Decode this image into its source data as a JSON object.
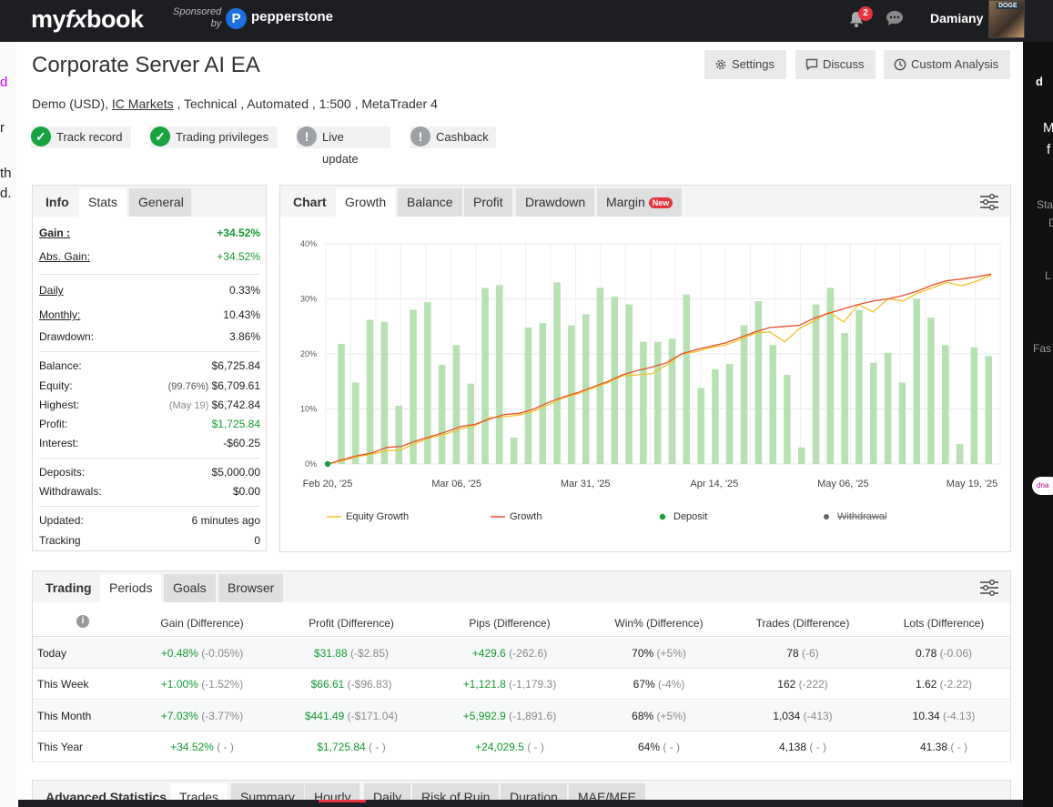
{
  "topbar": {
    "logo_my": "my",
    "logo_fx": "fx",
    "logo_book": "book",
    "sponsored_line1": "Sponsored",
    "sponsored_line2": "by",
    "sponsor_name": "pepperstone",
    "notification_count": "2",
    "username": "Damiany",
    "avatar_caption": "DOGE"
  },
  "left_fragments": [
    "d",
    "r",
    "th",
    "d."
  ],
  "right_fragments": [
    "d",
    "M",
    "f",
    "Sta",
    "D",
    "L",
    "Fas",
    "dna"
  ],
  "header": {
    "title": "Corporate Server AI EA",
    "settings_label": "Settings",
    "discuss_label": "Discuss",
    "custom_analysis_label": "Custom Analysis",
    "subtitle_pre": "Demo (USD), ",
    "subtitle_link": "IC Markets",
    "subtitle_post": " , Technical , Automated , 1:500 , MetaTrader 4",
    "chips": [
      "Track record",
      "Trading privileges",
      "Live update",
      "Cashback"
    ]
  },
  "stats_panel": {
    "tabs": [
      "Info",
      "Stats",
      "General"
    ],
    "gain_label": "Gain :",
    "gain_value": "+34.52%",
    "abs_gain_label": "Abs. Gain:",
    "abs_gain_value": "+34.52%",
    "daily_label": "Daily",
    "daily_value": "0.33%",
    "monthly_label": "Monthly:",
    "monthly_value": "10.43%",
    "drawdown_label": "Drawdown:",
    "drawdown_value": "3.86%",
    "balance_label": "Balance:",
    "balance_value": "$6,725.84",
    "equity_label": "Equity:",
    "equity_pct": "(99.76%)",
    "equity_value": "$6,709.61",
    "highest_label": "Highest:",
    "highest_date": "(May 19)",
    "highest_value": "$6,742.84",
    "profit_label": "Profit:",
    "profit_value": "$1,725.84",
    "interest_label": "Interest:",
    "interest_value": "-$60.25",
    "deposits_label": "Deposits:",
    "deposits_value": "$5,000.00",
    "withdrawals_label": "Withdrawals:",
    "withdrawals_value": "$0.00",
    "updated_label": "Updated:",
    "updated_value": "6 minutes ago",
    "tracking_label": "Tracking",
    "tracking_value": "0"
  },
  "chart_panel": {
    "tabs": [
      "Chart",
      "Growth",
      "Balance",
      "Profit",
      "Drawdown",
      "Margin"
    ],
    "new_badge": "New"
  },
  "chart_data": {
    "type": "bar",
    "y_ticks": [
      "40%",
      "30%",
      "20%",
      "10%",
      "0%"
    ],
    "ylim": [
      0,
      40
    ],
    "x_ticks": [
      "Feb 20, '25",
      "Mar 06, '25",
      "Mar 31, '25",
      "Apr 14, '25",
      "May 06, '25",
      "May 19, '25"
    ],
    "legend": [
      "Equity Growth",
      "Growth",
      "Deposit",
      "Withdrawal"
    ],
    "legend_placement": "bottom",
    "grid": true,
    "colors": {
      "bars": "#b7e1b3",
      "growth": "#e8502a",
      "equity": "#f2c22a",
      "deposit": "#17a33d",
      "withdrawal": "#666666"
    },
    "bar_values": [
      21.8,
      14.8,
      26.2,
      25.8,
      10.6,
      28,
      29.4,
      18,
      21.6,
      14.6,
      32,
      32.5,
      4.8,
      24.8,
      25.6,
      33,
      25.2,
      27.2,
      32,
      30.4,
      29,
      22.2,
      22.2,
      22.8,
      30.8,
      13.8,
      17.2,
      18.2,
      25.2,
      29.6,
      21.6,
      16.2,
      3,
      29,
      32,
      23.8,
      28,
      18.4,
      20.2,
      14.8,
      30,
      26.6,
      21.6,
      3.6,
      21.2,
      19.6
    ],
    "growth_values": [
      0,
      0.8,
      1.5,
      2.0,
      3.0,
      3.2,
      4.2,
      5.0,
      5.8,
      6.8,
      7.2,
      8.2,
      9.0,
      9.2,
      10.0,
      11.2,
      12.2,
      13.0,
      14.0,
      15.0,
      16.2,
      17.0,
      17.6,
      18.4,
      20.0,
      20.8,
      21.4,
      22.0,
      23.0,
      24.0,
      24.8,
      25.0,
      25.2,
      26.5,
      27.4,
      28.2,
      29.0,
      29.6,
      30.0,
      30.6,
      31.4,
      32.5,
      33.3,
      33.6,
      34.0,
      34.5
    ],
    "equity_values": [
      0,
      0.6,
      1.3,
      1.8,
      2.4,
      2.6,
      3.8,
      4.8,
      5.4,
      6.4,
      7.0,
      8.4,
      8.6,
      8.9,
      9.6,
      10.8,
      12.0,
      12.8,
      13.8,
      14.8,
      16.0,
      16.2,
      16.4,
      18.0,
      20.0,
      20.4,
      21.2,
      21.6,
      22.6,
      23.8,
      24.0,
      22.2,
      24.6,
      26.0,
      27.6,
      25.8,
      29.0,
      27.6,
      30.0,
      29.6,
      31.0,
      32.0,
      33.0,
      32.4,
      33.2,
      34.3
    ]
  },
  "periods_panel": {
    "tabs": [
      "Trading",
      "Periods",
      "Goals",
      "Browser"
    ],
    "info_icon_label": "i",
    "columns": [
      "Gain (Difference)",
      "Profit (Difference)",
      "Pips (Difference)",
      "Win% (Difference)",
      "Trades (Difference)",
      "Lots (Difference)"
    ],
    "rows": [
      {
        "period": "Today",
        "gain": "+0.48%",
        "gain_d": "(-0.05%)",
        "profit": "$31.88",
        "profit_d": "(-$2.85)",
        "pips": "+429.6",
        "pips_d": "(-262.6)",
        "win": "70%",
        "win_d": "(+5%)",
        "trades": "78",
        "trades_d": "(-6)",
        "lots": "0.78",
        "lots_d": "(-0.06)"
      },
      {
        "period": "This Week",
        "gain": "+1.00%",
        "gain_d": "(-1.52%)",
        "profit": "$66.61",
        "profit_d": "(-$96.83)",
        "pips": "+1,121.8",
        "pips_d": "(-1,179.3)",
        "win": "67%",
        "win_d": "(-4%)",
        "trades": "162",
        "trades_d": "(-222)",
        "lots": "1.62",
        "lots_d": "(-2.22)"
      },
      {
        "period": "This Month",
        "gain": "+7.03%",
        "gain_d": "(-3.77%)",
        "profit": "$441.49",
        "profit_d": "(-$171.04)",
        "pips": "+5,992.9",
        "pips_d": "(-1,891.6)",
        "win": "68%",
        "win_d": "(+5%)",
        "trades": "1,034",
        "trades_d": "(-413)",
        "lots": "10.34",
        "lots_d": "(-4.13)"
      },
      {
        "period": "This Year",
        "gain": "+34.52%",
        "gain_d": "( - )",
        "profit": "$1,725.84",
        "profit_d": "( - )",
        "pips": "+24,029.5",
        "pips_d": "( - )",
        "win": "64%",
        "win_d": "( - )",
        "trades": "4,138",
        "trades_d": "( - )",
        "lots": "41.38",
        "lots_d": "( - )"
      }
    ]
  },
  "advanced_panel": {
    "tabs": [
      "Advanced Statistics",
      "Trades",
      "Summary",
      "Hourly",
      "Daily",
      "Risk of Ruin",
      "Duration",
      "MAE/MFE"
    ]
  }
}
